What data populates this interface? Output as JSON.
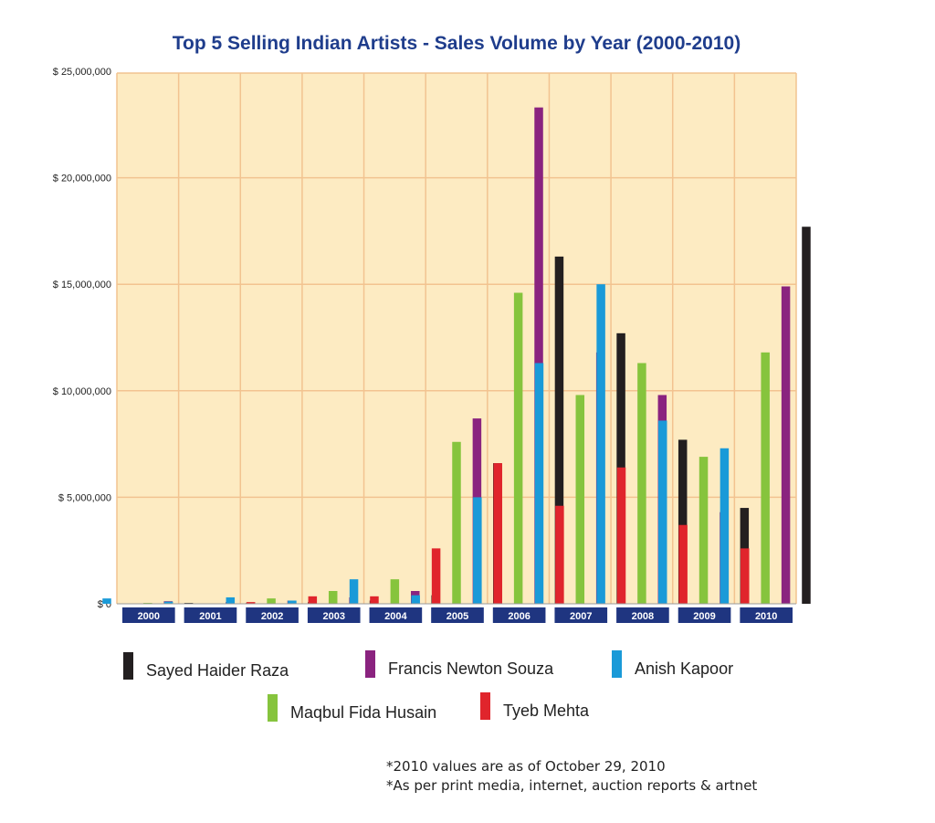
{
  "chart_data": {
    "type": "bar",
    "title": "Top 5 Selling Indian Artists - Sales Volume by Year (2000-2010)",
    "categories": [
      "2000",
      "2001",
      "2002",
      "2003",
      "2004",
      "2005",
      "2006",
      "2007",
      "2008",
      "2009",
      "2010"
    ],
    "y_ticks": [
      "$ 0",
      "$ 5,000,000",
      "$ 10,000,000",
      "$ 15,000,000",
      "$ 20,000,000",
      "$ 25,000,000"
    ],
    "ylim": [
      0,
      25000000
    ],
    "grid": true,
    "background": "#fdebc2",
    "grid_color": "#f2c390",
    "label_bar_color": "#1f3580",
    "series": [
      {
        "name": "Anish Kapoor",
        "color": "#1a9ad8",
        "values": [
          250000,
          100000,
          300000,
          150000,
          1150000,
          400000,
          5000000,
          11300000,
          15000000,
          8600000,
          7300000
        ]
      },
      {
        "name": "Tyeb Mehta",
        "color": "#e0252c",
        "values": [
          0,
          0,
          80000,
          350000,
          350000,
          2600000,
          6600000,
          4600000,
          6400000,
          3700000,
          2600000
        ]
      },
      {
        "name": "Maqbul Fida Husain",
        "color": "#86c43d",
        "values": [
          40000,
          0,
          250000,
          600000,
          1150000,
          7600000,
          14600000,
          9800000,
          11300000,
          6900000,
          11800000
        ]
      },
      {
        "name": "Francis Newton Souza",
        "color": "#8a237f",
        "values": [
          120000,
          80000,
          150000,
          300000,
          600000,
          8700000,
          23300000,
          11800000,
          9800000,
          4300000,
          14900000
        ]
      },
      {
        "name": "Sayed Haider Raza",
        "color": "#231f20",
        "values": [
          40000,
          50000,
          80000,
          150000,
          400000,
          6600000,
          16300000,
          12700000,
          7700000,
          4500000,
          17700000
        ]
      }
    ]
  },
  "legend": [
    {
      "name": "Sayed Haider Raza",
      "color": "#231f20"
    },
    {
      "name": "Francis Newton Souza",
      "color": "#8a237f"
    },
    {
      "name": "Anish Kapoor",
      "color": "#1a9ad8"
    },
    {
      "name": "Maqbul Fida Husain",
      "color": "#86c43d"
    },
    {
      "name": "Tyeb Mehta",
      "color": "#e0252c"
    }
  ],
  "footnotes": [
    "*2010 values are as of October 29, 2010",
    "*As per print media, internet, auction reports & artnet"
  ]
}
